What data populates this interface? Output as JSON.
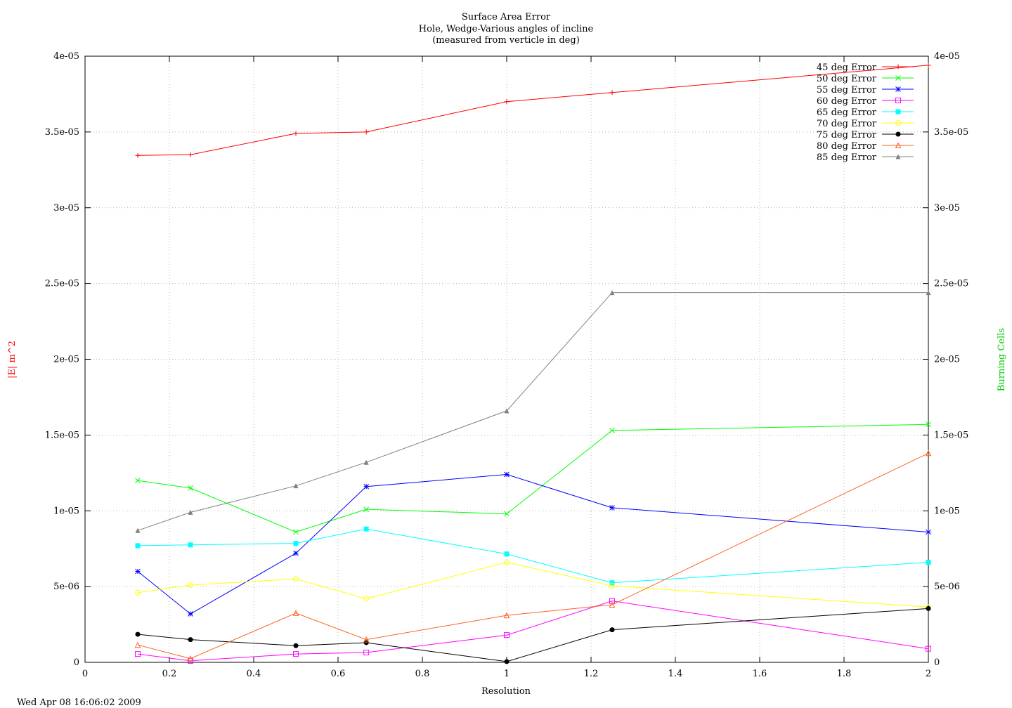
{
  "chart_data": {
    "type": "line",
    "title": [
      "Surface Area Error",
      "Hole, Wedge-Various angles of incline",
      "(measured from verticle in deg)"
    ],
    "xlabel": "Resolution",
    "ylabel_left": "|E| m^2",
    "ylabel_right": "Burning Cells",
    "timestamp": "Wed Apr 08 16:06:02 2009",
    "xlim": [
      0,
      2
    ],
    "ylim": [
      0,
      4e-05
    ],
    "x_ticks": [
      {
        "v": 0,
        "label": "0"
      },
      {
        "v": 0.2,
        "label": "0.2"
      },
      {
        "v": 0.4,
        "label": "0.4"
      },
      {
        "v": 0.6,
        "label": "0.6"
      },
      {
        "v": 0.8,
        "label": "0.8"
      },
      {
        "v": 1,
        "label": "1"
      },
      {
        "v": 1.2,
        "label": "1.2"
      },
      {
        "v": 1.4,
        "label": "1.4"
      },
      {
        "v": 1.6,
        "label": "1.6"
      },
      {
        "v": 1.8,
        "label": "1.8"
      },
      {
        "v": 2,
        "label": "2"
      }
    ],
    "y_ticks": [
      {
        "v": 0,
        "label": "0"
      },
      {
        "v": 5e-06,
        "label": "5e-06"
      },
      {
        "v": 1e-05,
        "label": "1e-05"
      },
      {
        "v": 1.5e-05,
        "label": "1.5e-05"
      },
      {
        "v": 2e-05,
        "label": "2e-05"
      },
      {
        "v": 2.5e-05,
        "label": "2.5e-05"
      },
      {
        "v": 3e-05,
        "label": "3e-05"
      },
      {
        "v": 3.5e-05,
        "label": "3.5e-05"
      },
      {
        "v": 4e-05,
        "label": "4e-05"
      }
    ],
    "grid": true,
    "legend_position": "top-right",
    "x": [
      0.125,
      0.25,
      0.5,
      0.667,
      1,
      1.25,
      2
    ],
    "series": [
      {
        "name": "45 deg Error",
        "color": "#ff0000",
        "marker": "plus",
        "values": [
          3.345e-05,
          3.35e-05,
          3.49e-05,
          3.5e-05,
          3.7e-05,
          3.76e-05,
          3.94e-05
        ]
      },
      {
        "name": "50 deg Error",
        "color": "#00ff00",
        "marker": "cross",
        "values": [
          1.2e-05,
          1.15e-05,
          8.6e-06,
          1.01e-05,
          9.8e-06,
          1.53e-05,
          1.57e-05
        ]
      },
      {
        "name": "55 deg Error",
        "color": "#0000ff",
        "marker": "star",
        "values": [
          6e-06,
          3.2e-06,
          7.2e-06,
          1.16e-05,
          1.24e-05,
          1.02e-05,
          8.6e-06
        ]
      },
      {
        "name": "60 deg Error",
        "color": "#ff00ff",
        "marker": "square-open",
        "values": [
          5.5e-07,
          1e-07,
          5.5e-07,
          6.5e-07,
          1.8e-06,
          4.05e-06,
          9e-07
        ]
      },
      {
        "name": "65 deg Error",
        "color": "#00ffff",
        "marker": "square-filled",
        "values": [
          7.7e-06,
          7.75e-06,
          7.85e-06,
          8.8e-06,
          7.15e-06,
          5.25e-06,
          6.6e-06
        ]
      },
      {
        "name": "70 deg Error",
        "color": "#ffff00",
        "marker": "circle-open",
        "values": [
          4.6e-06,
          5.1e-06,
          5.5e-06,
          4.2e-06,
          6.6e-06,
          5.05e-06,
          3.65e-06
        ]
      },
      {
        "name": "75 deg Error",
        "color": "#000000",
        "marker": "circle-filled",
        "values": [
          1.85e-06,
          1.5e-06,
          1.1e-06,
          1.3e-06,
          5e-08,
          2.15e-06,
          3.55e-06
        ]
      },
      {
        "name": "80 deg Error",
        "color": "#ff6020",
        "marker": "triangle-open",
        "values": [
          1.15e-06,
          2.5e-07,
          3.25e-06,
          1.5e-06,
          3.1e-06,
          3.8e-06,
          1.38e-05
        ]
      },
      {
        "name": "85 deg Error",
        "color": "#808080",
        "marker": "triangle-filled",
        "values": [
          8.7e-06,
          9.9e-06,
          1.165e-05,
          1.32e-05,
          1.66e-05,
          2.44e-05,
          2.44e-05
        ]
      }
    ],
    "colors": {
      "ylabel_left": "#ff0000",
      "ylabel_right": "#00cc00",
      "grid": "#a0a0a0"
    }
  }
}
